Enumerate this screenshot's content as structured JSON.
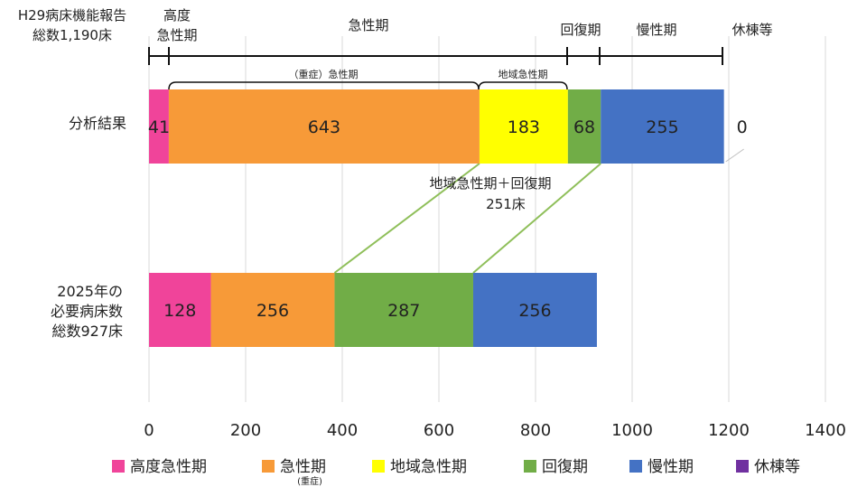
{
  "header": {
    "report_line1": "H29病床機能報告",
    "report_line2": "総数1,190床",
    "span_labels": {
      "high_line1": "高度",
      "high_line2": "急性期",
      "acute": "急性期",
      "recovery": "回復期",
      "chronic": "慢性期",
      "closed": "休棟等"
    },
    "sub_labels": {
      "severe_acute": "（重症）急性期",
      "community_acute": "地域急性期"
    }
  },
  "annotation": {
    "line1": "地域急性期＋回復期",
    "line2": "251床"
  },
  "row_labels": {
    "analysis": [
      "分析結果"
    ],
    "required": [
      "2025年の",
      "必要病床数",
      "総数927床"
    ]
  },
  "legend_sub": "(重症)",
  "chart_data": {
    "type": "bar",
    "orientation": "horizontal",
    "stacked": true,
    "categories": [
      "分析結果",
      "2025年の必要病床数"
    ],
    "series": [
      {
        "name": "高度急性期",
        "color": "#F0449A",
        "values": [
          41,
          128
        ]
      },
      {
        "name": "急性期",
        "color": "#F79A38",
        "values": [
          643,
          256
        ]
      },
      {
        "name": "地域急性期",
        "color": "#FFFF00",
        "values": [
          183,
          0
        ]
      },
      {
        "name": "回復期",
        "color": "#71AD47",
        "values": [
          68,
          287
        ]
      },
      {
        "name": "慢性期",
        "color": "#4472C4",
        "values": [
          255,
          256
        ]
      },
      {
        "name": "休棟等",
        "color": "#7030A0",
        "values": [
          0,
          0
        ]
      }
    ],
    "data_labels": [
      [
        "41",
        "643",
        "183",
        "68",
        "255",
        "0"
      ],
      [
        "128",
        "256",
        "",
        "287",
        "256",
        ""
      ]
    ],
    "xlim": [
      0,
      1400
    ],
    "xticks": [
      0,
      200,
      400,
      600,
      800,
      1000,
      1200,
      1400
    ],
    "xtick_labels": [
      "0",
      "200",
      "400",
      "600",
      "800",
      "1000",
      "1200",
      "1400"
    ],
    "grid": true,
    "legend_position": "bottom"
  }
}
